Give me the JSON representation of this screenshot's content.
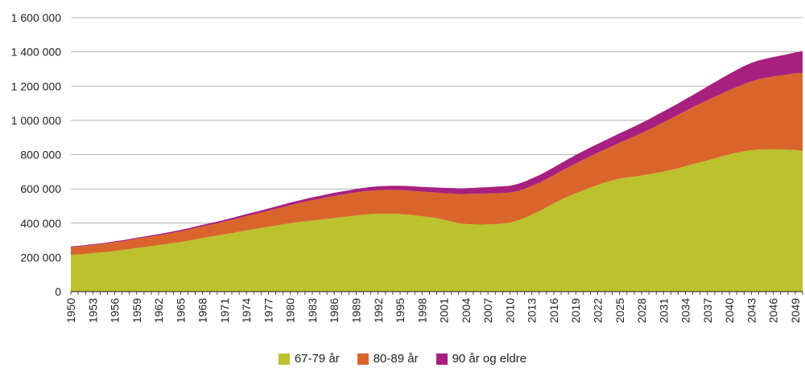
{
  "chart_data": {
    "type": "area",
    "stacked": true,
    "years": [
      1950,
      1951,
      1952,
      1953,
      1954,
      1955,
      1956,
      1957,
      1958,
      1959,
      1960,
      1961,
      1962,
      1963,
      1964,
      1965,
      1966,
      1967,
      1968,
      1969,
      1970,
      1971,
      1972,
      1973,
      1974,
      1975,
      1976,
      1977,
      1978,
      1979,
      1980,
      1981,
      1982,
      1983,
      1984,
      1985,
      1986,
      1987,
      1988,
      1989,
      1990,
      1991,
      1992,
      1993,
      1994,
      1995,
      1996,
      1997,
      1998,
      1999,
      2000,
      2001,
      2002,
      2003,
      2004,
      2005,
      2006,
      2007,
      2008,
      2009,
      2010,
      2011,
      2012,
      2013,
      2014,
      2015,
      2016,
      2017,
      2018,
      2019,
      2020,
      2021,
      2022,
      2023,
      2024,
      2025,
      2026,
      2027,
      2028,
      2029,
      2030,
      2031,
      2032,
      2033,
      2034,
      2035,
      2036,
      2037,
      2038,
      2039,
      2040,
      2041,
      2042,
      2043,
      2044,
      2045,
      2046,
      2047,
      2048,
      2049,
      2050
    ],
    "x_tick_labels": [
      "1950",
      "1953",
      "1956",
      "1959",
      "1962",
      "1965",
      "1968",
      "1971",
      "1974",
      "1977",
      "1980",
      "1983",
      "1986",
      "1989",
      "1992",
      "1995",
      "1998",
      "2001",
      "2004",
      "2007",
      "2010",
      "2013",
      "2016",
      "2019",
      "2022",
      "2025",
      "2028",
      "2031",
      "2034",
      "2037",
      "2040",
      "2043",
      "2046",
      "2049"
    ],
    "y_tick_labels": [
      "0",
      "200 000",
      "400 000",
      "600 000",
      "800 000",
      "1 000 000",
      "1 200 000",
      "1 400 000",
      "1 600 000"
    ],
    "ylim": [
      0,
      1600000
    ],
    "grid": "horizontal",
    "legend_position": "bottom",
    "series": [
      {
        "name": "67-79 år",
        "color": "#bcc22d",
        "values": [
          215000,
          217000,
          220000,
          225000,
          228000,
          232000,
          238000,
          242000,
          248000,
          255000,
          260000,
          266000,
          272000,
          278000,
          284000,
          290000,
          297000,
          305000,
          313000,
          320000,
          327000,
          335000,
          342000,
          350000,
          358000,
          365000,
          372000,
          379000,
          386000,
          393000,
          400000,
          405000,
          410000,
          415000,
          420000,
          425000,
          430000,
          435000,
          440000,
          445000,
          450000,
          453000,
          455000,
          455000,
          455000,
          453000,
          450000,
          445000,
          440000,
          435000,
          430000,
          420000,
          410000,
          400000,
          395000,
          393000,
          392000,
          393000,
          395000,
          398000,
          403000,
          415000,
          430000,
          450000,
          470000,
          492000,
          515000,
          537000,
          557000,
          575000,
          592000,
          608000,
          623000,
          637000,
          650000,
          660000,
          666000,
          672000,
          678000,
          685000,
          693000,
          701000,
          710000,
          720000,
          733000,
          745000,
          756000,
          766000,
          778000,
          790000,
          802000,
          812000,
          820000,
          826000,
          830000,
          831000,
          831000,
          830000,
          829000,
          827000,
          822000
        ]
      },
      {
        "name": "80-89 år",
        "color": "#d9652c",
        "values": [
          45000,
          46000,
          47000,
          48000,
          49000,
          50000,
          51000,
          52000,
          53000,
          54000,
          55000,
          56000,
          57000,
          58000,
          60000,
          62000,
          64000,
          66000,
          68000,
          70000,
          72000,
          74000,
          77000,
          80000,
          83000,
          86000,
          89000,
          93000,
          97000,
          101000,
          105000,
          110000,
          115000,
          119000,
          122000,
          126000,
          129000,
          131000,
          133000,
          135000,
          136000,
          137000,
          138000,
          139000,
          139000,
          140000,
          141000,
          142000,
          144000,
          146000,
          148000,
          155000,
          163000,
          170000,
          175000,
          178000,
          180000,
          180000,
          180000,
          178000,
          175000,
          172000,
          170000,
          168000,
          166000,
          165000,
          165000,
          167000,
          170000,
          174000,
          178000,
          183000,
          188000,
          193000,
          200000,
          210000,
          222000,
          235000,
          248000,
          261000,
          275000,
          288000,
          300000,
          312000,
          323000,
          333000,
          342000,
          352000,
          360000,
          368000,
          375000,
          383000,
          392000,
          402000,
          410000,
          418000,
          425000,
          432000,
          440000,
          448000,
          455000
        ]
      },
      {
        "name": "90 år og eldre",
        "color": "#a8207f",
        "values": [
          4000,
          4200,
          4400,
          4600,
          4800,
          5000,
          5300,
          5600,
          5900,
          6200,
          6500,
          6800,
          7100,
          7400,
          7700,
          8000,
          8400,
          8800,
          9200,
          9600,
          10000,
          10500,
          11000,
          11500,
          12000,
          12500,
          13000,
          13500,
          14000,
          14500,
          15000,
          15500,
          16000,
          16500,
          17000,
          17500,
          18000,
          18500,
          19000,
          19500,
          20000,
          21000,
          22000,
          23000,
          24000,
          25000,
          26000,
          27000,
          28000,
          29000,
          30000,
          31000,
          32000,
          33000,
          34000,
          35000,
          36000,
          37000,
          38000,
          39000,
          40000,
          41000,
          42000,
          43000,
          44000,
          45000,
          46000,
          47000,
          48000,
          49000,
          50000,
          51000,
          52000,
          53000,
          54000,
          55000,
          56500,
          58000,
          59500,
          61000,
          62500,
          64000,
          65500,
          67000,
          68500,
          70000,
          75000,
          80000,
          85000,
          90000,
          95000,
          100000,
          105000,
          108000,
          110000,
          112000,
          114000,
          116000,
          118000,
          122000,
          128000
        ]
      }
    ]
  }
}
